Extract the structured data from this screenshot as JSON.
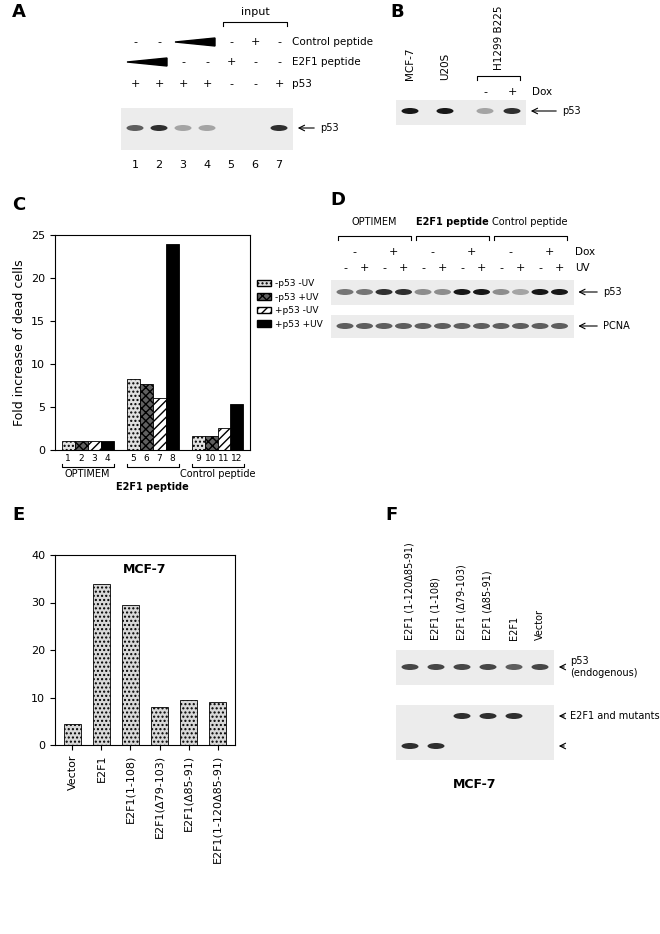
{
  "chart_data": [
    {
      "panel": "C",
      "type": "bar",
      "ylabel": "Fold increase of dead cells",
      "categories": [
        "OPTIMEM",
        "E2F1 peptide",
        "Control peptide"
      ],
      "bar_labels": [
        "1",
        "2",
        "3",
        "4",
        "5",
        "6",
        "7",
        "8",
        "9",
        "10",
        "11",
        "12"
      ],
      "series": [
        {
          "name": "-p53 -UV",
          "color": "#e0e0e0",
          "values": [
            1,
            8.2,
            1.6
          ]
        },
        {
          "name": "-p53 +UV",
          "color": "#606060",
          "values": [
            1,
            7.7,
            1.6
          ]
        },
        {
          "name": "+p53 -UV",
          "color": "#ffffff",
          "values": [
            1,
            6,
            2.6
          ]
        },
        {
          "name": "+p53 +UV",
          "color": "#000000",
          "values": [
            1,
            24,
            5.3
          ]
        }
      ],
      "ylim": [
        0,
        25
      ],
      "yticks": [
        0,
        5,
        10,
        15,
        20,
        25
      ],
      "legend": "upper left"
    },
    {
      "panel": "E",
      "type": "bar",
      "title": "MCF-7",
      "categories": [
        "Vector",
        "E2F1",
        "E2F1(1-108)",
        "E2F1(Δ79-103)",
        "E2F1(Δ85-91)",
        "E2F1(1-120Δ85-91)"
      ],
      "values": [
        4.5,
        34,
        29.5,
        8,
        9.5,
        9
      ],
      "color": "#d8d8d8",
      "ylim": [
        0,
        40
      ],
      "yticks": [
        0,
        10,
        20,
        30,
        40
      ]
    }
  ],
  "blots": [
    {
      "panel": "A",
      "header": {
        "text": "input",
        "lanes": [
          5,
          7
        ]
      },
      "rows": [
        {
          "label": "Control peptide",
          "marks": [
            "-",
            "-",
            null,
            null,
            "-",
            "+",
            "-"
          ],
          "wedge": [
            3,
            4
          ]
        },
        {
          "label": "E2F1 peptide",
          "marks": [
            null,
            null,
            "-",
            "-",
            "+",
            "-",
            "-"
          ],
          "wedge": [
            1,
            2
          ]
        },
        {
          "label": "p53",
          "marks": [
            "+",
            "+",
            "+",
            "+",
            "-",
            "-",
            "+"
          ]
        }
      ],
      "strips": [
        {
          "bands": [
            {
              "label": "p53",
              "intensity": [
                0.6,
                0.8,
                0.3,
                0.3,
                0,
                0,
                0.8
              ]
            }
          ]
        }
      ],
      "lane_numbers": [
        1,
        2,
        3,
        4,
        5,
        6,
        7
      ]
    },
    {
      "panel": "B",
      "lane_labels": [
        "MCF-7",
        "U20S",
        null,
        null
      ],
      "group": {
        "text": "H1299 B225",
        "lanes": [
          3,
          4
        ]
      },
      "rows": [
        {
          "label": "Dox",
          "marks": [
            null,
            null,
            "-",
            "+"
          ]
        }
      ],
      "strips": [
        {
          "bands": [
            {
              "label": "p53",
              "intensity": [
                0.9,
                0.9,
                0.3,
                0.8
              ]
            }
          ]
        }
      ]
    },
    {
      "panel": "D",
      "groups": [
        {
          "text": "OPTIMEM",
          "lanes": [
            1,
            4
          ]
        },
        {
          "text": "E2F1 peptide",
          "lanes": [
            5,
            8
          ]
        },
        {
          "text": "Control peptide",
          "lanes": [
            9,
            12
          ]
        }
      ],
      "rows": [
        {
          "label": "Dox",
          "marks": [
            "-",
            "+",
            "-",
            "+",
            "-",
            "+"
          ],
          "span": 2
        },
        {
          "label": "UV",
          "marks": [
            "-",
            "+",
            "-",
            "+",
            "-",
            "+",
            "-",
            "+",
            "-",
            "+",
            "-",
            "+"
          ],
          "span": 1
        }
      ],
      "strips": [
        {
          "bands": [
            {
              "label": "p53",
              "intensity": [
                0.5,
                0.5,
                0.8,
                0.8,
                0.4,
                0.4,
                0.9,
                0.9,
                0.4,
                0.3,
                0.9,
                0.9
              ]
            }
          ]
        },
        {
          "bands": [
            {
              "label": "PCNA",
              "intensity": [
                0.6,
                0.6,
                0.6,
                0.6,
                0.6,
                0.6,
                0.6,
                0.6,
                0.6,
                0.6,
                0.6,
                0.6
              ]
            }
          ]
        }
      ]
    },
    {
      "panel": "F",
      "lane_labels": [
        "E2F1 (1-120Δ85-91)",
        "E2F1 (1-108)",
        "E2F1 (Δ79-103)",
        "E2F1 (Δ85-91)",
        "E2F1",
        "Vector"
      ],
      "strips": [
        {
          "bands": [
            {
              "label": "p53\n(endogenous)",
              "intensity": [
                0.7,
                0.7,
                0.7,
                0.7,
                0.6,
                0.7
              ]
            }
          ]
        },
        {
          "bands": [
            {
              "label": "E2F1 and mutants",
              "intensity": [
                0,
                0,
                0.8,
                0.8,
                0.8,
                0
              ]
            },
            {
              "label": null,
              "intensity": [
                0.8,
                0.8,
                0,
                0,
                0,
                0
              ]
            }
          ]
        }
      ],
      "footer": "MCF-7"
    }
  ]
}
